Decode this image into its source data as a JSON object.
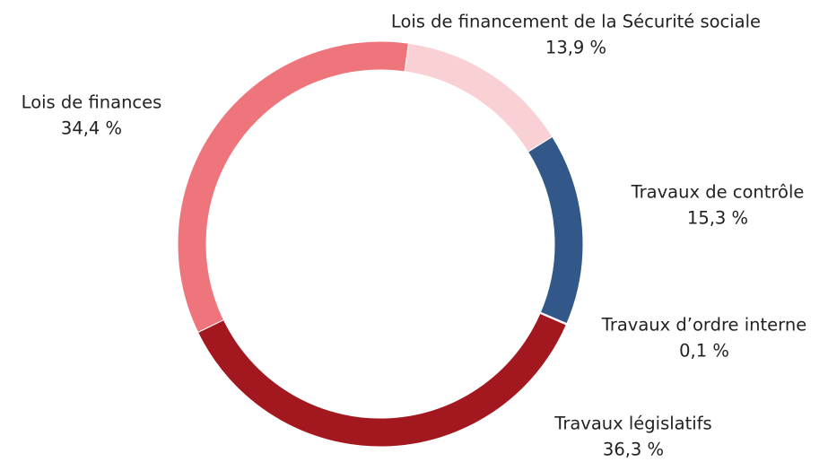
{
  "chart_data": {
    "type": "donut",
    "categories": [
      "Lois de financement de la Sécurité sociale",
      "Travaux de contrôle",
      "Travaux d’ordre interne",
      "Travaux législatifs",
      "Lois de finances"
    ],
    "values": [
      13.9,
      15.3,
      0.1,
      36.3,
      34.4
    ],
    "value_labels": [
      "13,9 %",
      "15,3 %",
      "0,1 %",
      "36,3 %",
      "34,4 %"
    ],
    "colors": [
      "#f9d0d3",
      "#325889",
      "#d9d9d9",
      "#a3171f",
      "#ee757c"
    ]
  }
}
